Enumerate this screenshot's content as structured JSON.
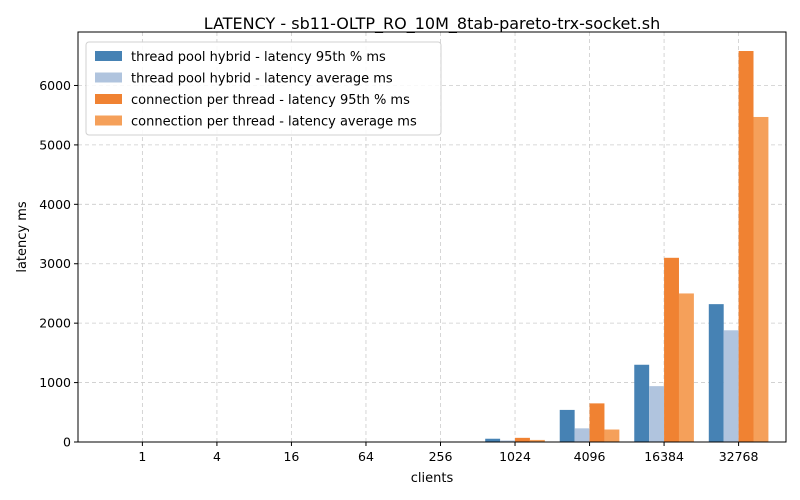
{
  "chart_data": {
    "type": "bar",
    "title": "LATENCY - sb11-OLTP_RO_10M_8tab-pareto-trx-socket.sh",
    "xlabel": "clients",
    "ylabel": "latency ms",
    "categories": [
      "1",
      "4",
      "16",
      "64",
      "256",
      "1024",
      "4096",
      "16384",
      "32768"
    ],
    "ylim": [
      0,
      6900
    ],
    "yticks": [
      0,
      1000,
      2000,
      3000,
      4000,
      5000,
      6000
    ],
    "grid": true,
    "legend_position": "top-left",
    "series": [
      {
        "name": "thread pool hybrid - latency 95th % ms",
        "color": "#4682b4",
        "values": [
          2,
          2,
          2,
          0,
          3,
          55,
          540,
          1300,
          2320
        ]
      },
      {
        "name": "thread pool hybrid - latency average ms",
        "color": "#b0c4de",
        "values": [
          1,
          1,
          1,
          0,
          2,
          25,
          230,
          940,
          1880
        ]
      },
      {
        "name": "connection per thread - latency 95th % ms",
        "color": "#f08232",
        "values": [
          2,
          2,
          2,
          0,
          3,
          70,
          650,
          3100,
          6580
        ]
      },
      {
        "name": "connection per thread - latency average ms",
        "color": "#f5a05a",
        "values": [
          1,
          1,
          1,
          0,
          2,
          35,
          210,
          2500,
          5470
        ]
      }
    ]
  }
}
